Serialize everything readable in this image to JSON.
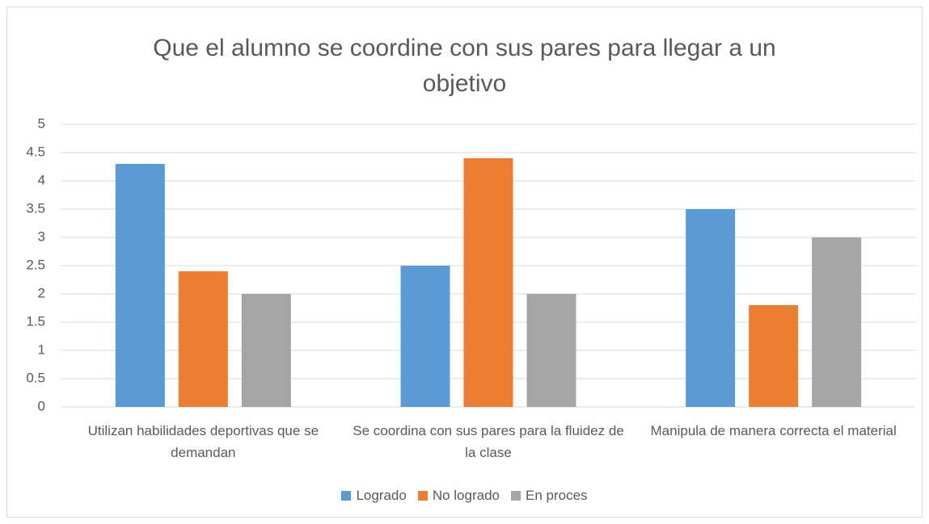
{
  "chart_data": {
    "type": "bar",
    "title": "Que el alumno se coordine con sus pares para llegar a un objetivo",
    "categories": [
      "Utilizan habilidades deportivas que se demandan",
      "Se coordina con sus pares para la fluidez de la clase",
      "Manipula de manera correcta el material"
    ],
    "series": [
      {
        "name": "Logrado",
        "color": "#5b9bd5",
        "values": [
          4.3,
          2.5,
          3.5
        ]
      },
      {
        "name": "No logrado",
        "color": "#ed7d31",
        "values": [
          2.4,
          4.4,
          1.8
        ]
      },
      {
        "name": "En proces",
        "color": "#a5a5a5",
        "values": [
          2,
          2,
          3
        ]
      }
    ],
    "ylim": [
      0,
      5
    ],
    "yticks": [
      0,
      0.5,
      1,
      1.5,
      2,
      2.5,
      3,
      3.5,
      4,
      4.5,
      5
    ],
    "grid": true,
    "legend": "bottom"
  }
}
